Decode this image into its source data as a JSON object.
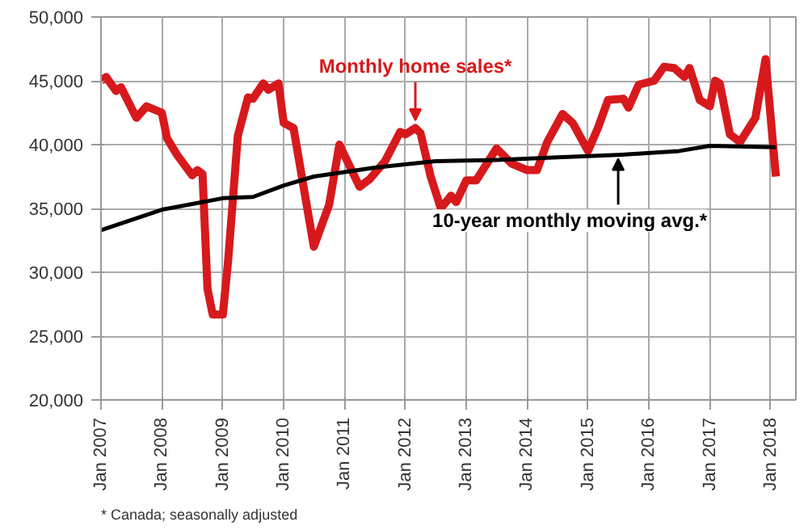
{
  "chart_data": {
    "type": "line",
    "x": [
      "2007-01",
      "2007-02",
      "2007-04",
      "2007-05",
      "2007-08",
      "2007-10",
      "2008-01",
      "2008-02",
      "2008-04",
      "2008-07",
      "2008-08",
      "2008-09",
      "2008-10",
      "2008-11",
      "2009-01",
      "2009-02",
      "2009-04",
      "2009-06",
      "2009-07",
      "2009-09",
      "2009-10",
      "2009-12",
      "2010-01",
      "2010-03",
      "2010-07",
      "2010-10",
      "2010-12",
      "2011-04",
      "2011-06",
      "2011-09",
      "2011-12",
      "2012-01",
      "2012-03",
      "2012-04",
      "2012-06",
      "2012-08",
      "2012-10",
      "2012-11",
      "2013-01",
      "2013-03",
      "2013-07",
      "2013-10",
      "2014-01",
      "2014-03",
      "2014-05",
      "2014-08",
      "2014-10",
      "2015-01",
      "2015-03",
      "2015-05",
      "2015-08",
      "2015-09",
      "2015-11",
      "2016-02",
      "2016-04",
      "2016-06",
      "2016-08",
      "2016-09",
      "2016-11",
      "2017-01",
      "2017-02",
      "2017-03",
      "2017-05",
      "2017-07",
      "2017-10",
      "2017-12",
      "2018-02"
    ],
    "series": [
      {
        "color": "#d7191c",
        "values": [
          45000,
          45300,
          44200,
          44500,
          42100,
          43000,
          42500,
          40500,
          39200,
          37600,
          38000,
          37700,
          28700,
          26700,
          26700,
          30800,
          40700,
          43700,
          43600,
          44800,
          44300,
          44800,
          41700,
          41300,
          32000,
          35300,
          40000,
          36700,
          37300,
          38700,
          41000,
          40800,
          41300,
          40900,
          37500,
          35000,
          36000,
          35500,
          37200,
          37200,
          39700,
          38500,
          38000,
          38000,
          40200,
          42400,
          41700,
          39500,
          41300,
          43500,
          43600,
          42900,
          44700,
          45000,
          46100,
          46000,
          45300,
          46000,
          43500,
          43000,
          45000,
          44800,
          40800,
          40200,
          42100,
          46700,
          37500
        ]
      },
      {
        "color": "#000000",
        "x": [
          "2007-01",
          "2008-01",
          "2009-01",
          "2009-07",
          "2010-01",
          "2010-07",
          "2011-07",
          "2012-07",
          "2013-07",
          "2014-07",
          "2015-07",
          "2016-07",
          "2017-01",
          "2018-02"
        ],
        "values": [
          33300,
          34900,
          35800,
          35900,
          36800,
          37500,
          38200,
          38700,
          38800,
          39000,
          39200,
          39500,
          39900,
          39800
        ]
      }
    ],
    "xlim": [
      "2007-01",
      "2018-06"
    ],
    "xticks": [
      {
        "value": "2007-01",
        "label": "Jan 2007"
      },
      {
        "value": "2008-01",
        "label": "Jan 2008"
      },
      {
        "value": "2009-01",
        "label": "Jan 2009"
      },
      {
        "value": "2010-01",
        "label": "Jan 2010"
      },
      {
        "value": "2011-01",
        "label": "Jan 2011"
      },
      {
        "value": "2012-01",
        "label": "Jan 2012"
      },
      {
        "value": "2013-01",
        "label": "Jan 2013"
      },
      {
        "value": "2014-01",
        "label": "Jan 2014"
      },
      {
        "value": "2015-01",
        "label": "Jan 2015"
      },
      {
        "value": "2016-01",
        "label": "Jan 2016"
      },
      {
        "value": "2017-01",
        "label": "Jan 2017"
      },
      {
        "value": "2018-01",
        "label": "Jan 2018"
      }
    ],
    "ylim": [
      20000,
      50000
    ],
    "yticks": [
      {
        "value": 20000,
        "label": "20,000"
      },
      {
        "value": 25000,
        "label": "25,000"
      },
      {
        "value": 30000,
        "label": "30,000"
      },
      {
        "value": 35000,
        "label": "35,000"
      },
      {
        "value": 40000,
        "label": "40,000"
      },
      {
        "value": 45000,
        "label": "45,000"
      },
      {
        "value": 50000,
        "label": "50,000"
      }
    ],
    "grid": true,
    "marker": "none",
    "line_style": "solid",
    "annotations": [
      {
        "text": "Monthly home sales*",
        "x": "2012-03",
        "y": 41300
      },
      {
        "text": "10-year monthly moving avg.*",
        "x": "2015-07",
        "y": 39200
      },
      "* Canada; seasonally adjusted"
    ]
  }
}
